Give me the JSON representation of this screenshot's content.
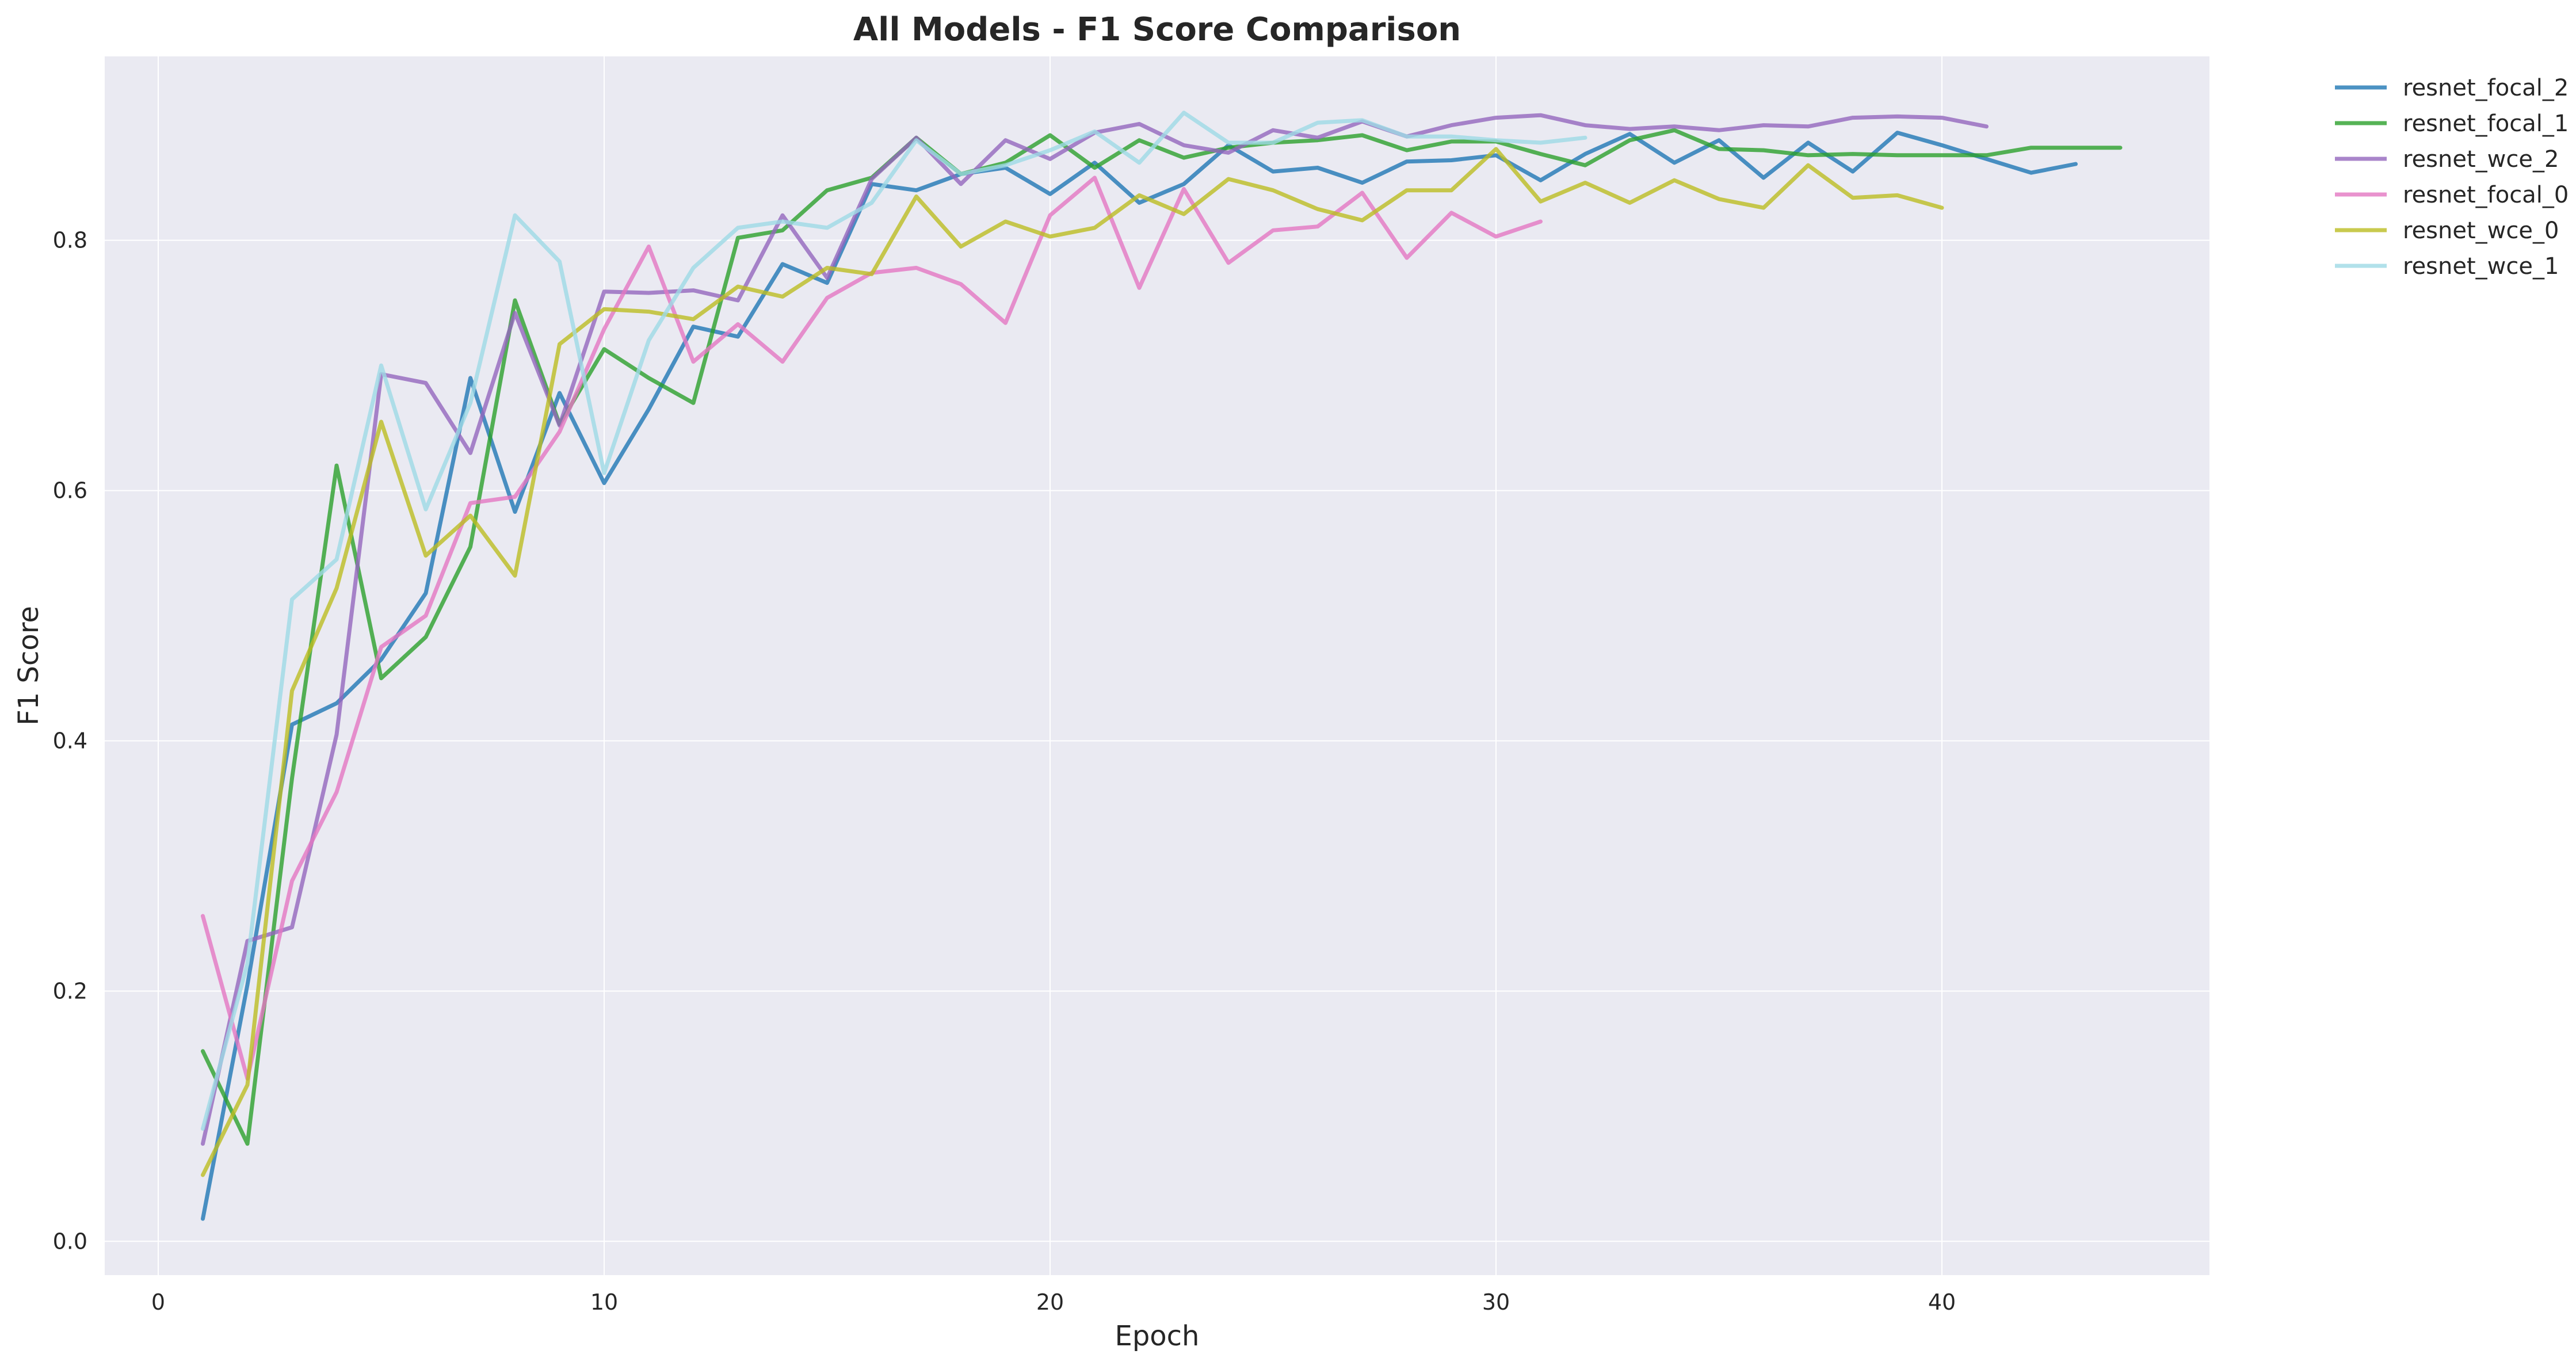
{
  "chart_data": {
    "type": "line",
    "title": "All Models - F1 Score Comparison",
    "xlabel": "Epoch",
    "ylabel": "F1 Score",
    "xlim": [
      -1.2,
      46
    ],
    "ylim": [
      -0.027,
      0.947
    ],
    "x_ticks": [
      0,
      10,
      20,
      30,
      40
    ],
    "y_ticks": [
      0.0,
      0.2,
      0.4,
      0.6,
      0.8
    ],
    "x_tick_labels": [
      "0",
      "10",
      "20",
      "30",
      "40"
    ],
    "y_tick_labels": [
      "0.0",
      "0.2",
      "0.4",
      "0.6",
      "0.8"
    ],
    "grid": true,
    "legend_position": "outside-upper-right",
    "plot_background": "#eaeaf2",
    "series": [
      {
        "name": "resnet_focal_2",
        "color": "#1f77b4",
        "x": [
          1,
          2,
          3,
          4,
          5,
          6,
          7,
          8,
          9,
          10,
          11,
          12,
          13,
          14,
          15,
          16,
          17,
          18,
          19,
          20,
          21,
          22,
          23,
          24,
          25,
          26,
          27,
          28,
          29,
          30,
          31,
          32,
          33,
          34,
          35,
          36,
          37,
          38,
          39,
          40,
          41,
          42,
          43
        ],
        "values": [
          0.018,
          0.205,
          0.413,
          0.43,
          0.465,
          0.518,
          0.69,
          0.583,
          0.678,
          0.606,
          0.665,
          0.731,
          0.723,
          0.781,
          0.766,
          0.845,
          0.84,
          0.853,
          0.858,
          0.837,
          0.862,
          0.83,
          0.845,
          0.876,
          0.855,
          0.858,
          0.846,
          0.863,
          0.864,
          0.868,
          0.848,
          0.869,
          0.885,
          0.862,
          0.88,
          0.85,
          0.878,
          0.855,
          0.886,
          0.876,
          0.865,
          0.854,
          0.861
        ]
      },
      {
        "name": "resnet_focal_1",
        "color": "#2ca02c",
        "x": [
          1,
          2,
          3,
          4,
          5,
          6,
          7,
          8,
          9,
          10,
          11,
          12,
          13,
          14,
          15,
          16,
          17,
          18,
          19,
          20,
          21,
          22,
          23,
          24,
          25,
          26,
          27,
          28,
          29,
          30,
          31,
          32,
          33,
          34,
          35,
          36,
          37,
          38,
          39,
          40,
          41,
          42,
          43,
          44
        ],
        "values": [
          0.152,
          0.078,
          0.37,
          0.62,
          0.45,
          0.483,
          0.555,
          0.752,
          0.653,
          0.713,
          0.69,
          0.67,
          0.802,
          0.808,
          0.84,
          0.85,
          0.882,
          0.853,
          0.862,
          0.884,
          0.858,
          0.88,
          0.866,
          0.874,
          0.878,
          0.88,
          0.884,
          0.872,
          0.879,
          0.879,
          0.869,
          0.86,
          0.88,
          0.888,
          0.873,
          0.872,
          0.868,
          0.869,
          0.868,
          0.868,
          0.868,
          0.874,
          0.874,
          0.874
        ]
      },
      {
        "name": "resnet_wce_2",
        "color": "#9467bd",
        "x": [
          1,
          2,
          3,
          4,
          5,
          6,
          7,
          8,
          9,
          10,
          11,
          12,
          13,
          14,
          15,
          16,
          17,
          18,
          19,
          20,
          21,
          22,
          23,
          24,
          25,
          26,
          27,
          28,
          29,
          30,
          31,
          32,
          33,
          34,
          35,
          36,
          37,
          38,
          39,
          40,
          41
        ],
        "values": [
          0.078,
          0.24,
          0.251,
          0.405,
          0.693,
          0.686,
          0.63,
          0.742,
          0.652,
          0.759,
          0.758,
          0.76,
          0.752,
          0.82,
          0.77,
          0.849,
          0.882,
          0.845,
          0.88,
          0.865,
          0.886,
          0.893,
          0.876,
          0.87,
          0.888,
          0.882,
          0.895,
          0.883,
          0.892,
          0.898,
          0.9,
          0.892,
          0.889,
          0.891,
          0.888,
          0.892,
          0.891,
          0.898,
          0.899,
          0.898,
          0.891
        ]
      },
      {
        "name": "resnet_focal_0",
        "color": "#e377c2",
        "x": [
          1,
          2,
          3,
          4,
          5,
          6,
          7,
          8,
          9,
          10,
          11,
          12,
          13,
          14,
          15,
          16,
          17,
          18,
          19,
          20,
          21,
          22,
          23,
          24,
          25,
          26,
          27,
          28,
          29,
          30,
          31
        ],
        "values": [
          0.26,
          0.13,
          0.288,
          0.359,
          0.475,
          0.5,
          0.59,
          0.595,
          0.647,
          0.729,
          0.795,
          0.703,
          0.733,
          0.703,
          0.754,
          0.774,
          0.778,
          0.765,
          0.734,
          0.82,
          0.85,
          0.762,
          0.841,
          0.782,
          0.808,
          0.811,
          0.838,
          0.786,
          0.822,
          0.803,
          0.815
        ]
      },
      {
        "name": "resnet_wce_0",
        "color": "#bcbd22",
        "x": [
          1,
          2,
          3,
          4,
          5,
          6,
          7,
          8,
          9,
          10,
          11,
          12,
          13,
          14,
          15,
          16,
          17,
          18,
          19,
          20,
          21,
          22,
          23,
          24,
          25,
          26,
          27,
          28,
          29,
          30,
          31,
          32,
          33,
          34,
          35,
          36,
          37,
          38,
          39,
          40
        ],
        "values": [
          0.053,
          0.125,
          0.44,
          0.522,
          0.655,
          0.548,
          0.58,
          0.532,
          0.717,
          0.745,
          0.743,
          0.737,
          0.763,
          0.755,
          0.778,
          0.773,
          0.835,
          0.795,
          0.815,
          0.803,
          0.81,
          0.836,
          0.821,
          0.849,
          0.84,
          0.825,
          0.816,
          0.84,
          0.84,
          0.873,
          0.831,
          0.846,
          0.83,
          0.848,
          0.833,
          0.826,
          0.86,
          0.834,
          0.836,
          0.826
        ]
      },
      {
        "name": "resnet_wce_1",
        "color": "#9edae5",
        "x": [
          1,
          2,
          3,
          4,
          5,
          6,
          7,
          8,
          9,
          10,
          11,
          12,
          13,
          14,
          15,
          16,
          17,
          18,
          19,
          20,
          21,
          22,
          23,
          24,
          25,
          26,
          27,
          28,
          29,
          30,
          31,
          32
        ],
        "values": [
          0.09,
          0.222,
          0.513,
          0.545,
          0.7,
          0.585,
          0.67,
          0.82,
          0.783,
          0.614,
          0.72,
          0.778,
          0.81,
          0.815,
          0.81,
          0.83,
          0.88,
          0.853,
          0.86,
          0.872,
          0.887,
          0.862,
          0.902,
          0.878,
          0.878,
          0.894,
          0.896,
          0.883,
          0.883,
          0.88,
          0.878,
          0.882
        ]
      }
    ]
  }
}
